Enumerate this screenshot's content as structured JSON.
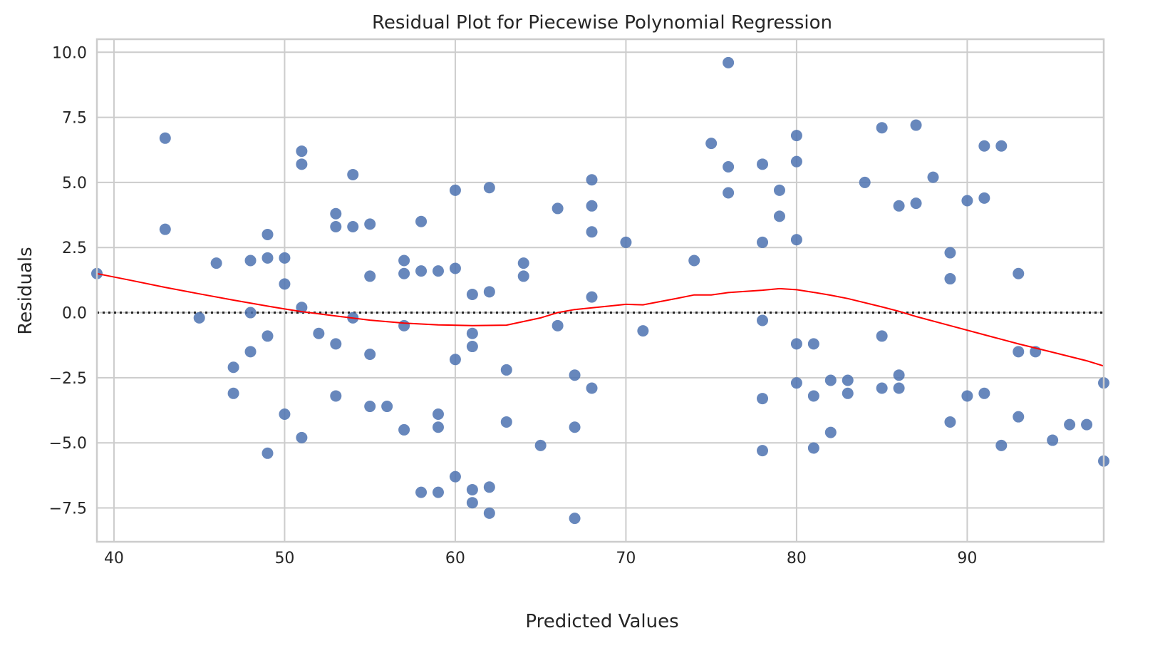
{
  "chart_data": {
    "type": "scatter",
    "title": "Residual Plot for Piecewise Polynomial Regression",
    "xlabel": "Predicted Values",
    "ylabel": "Residuals",
    "xlim": [
      39,
      98
    ],
    "ylim": [
      -8.8,
      10.5
    ],
    "grid": true,
    "x_ticks": [
      40,
      50,
      60,
      70,
      80,
      90
    ],
    "x_tick_labels": [
      "40",
      "50",
      "60",
      "70",
      "80",
      "90"
    ],
    "y_ticks": [
      10.0,
      7.5,
      5.0,
      2.5,
      0.0,
      -2.5,
      -5.0,
      -7.5
    ],
    "y_tick_labels": [
      "10.0",
      "7.5",
      "5.0",
      "2.5",
      "0.0",
      "−2.5",
      "−5.0",
      "−7.5"
    ],
    "reference_line": {
      "y": 0,
      "style": "dotted",
      "color": "#262626"
    },
    "colors": {
      "points": "#4c72b0",
      "trend": "#ff0000",
      "grid": "#cccccc",
      "spine": "#cccccc"
    },
    "series": [
      {
        "name": "Residuals",
        "kind": "scatter",
        "points": [
          [
            39,
            1.5
          ],
          [
            43,
            6.7
          ],
          [
            43,
            3.2
          ],
          [
            45,
            -0.2
          ],
          [
            46,
            1.9
          ],
          [
            47,
            -2.1
          ],
          [
            47,
            -3.1
          ],
          [
            48,
            2.0
          ],
          [
            48,
            0.0
          ],
          [
            48,
            -1.5
          ],
          [
            49,
            3.0
          ],
          [
            49,
            2.1
          ],
          [
            49,
            -0.9
          ],
          [
            49,
            -5.4
          ],
          [
            50,
            2.1
          ],
          [
            50,
            1.1
          ],
          [
            50,
            -3.9
          ],
          [
            51,
            6.2
          ],
          [
            51,
            5.7
          ],
          [
            51,
            0.2
          ],
          [
            51,
            -4.8
          ],
          [
            52,
            -0.8
          ],
          [
            53,
            3.8
          ],
          [
            53,
            3.3
          ],
          [
            53,
            -1.2
          ],
          [
            53,
            -3.2
          ],
          [
            54,
            5.3
          ],
          [
            54,
            3.3
          ],
          [
            54,
            -0.2
          ],
          [
            55,
            3.4
          ],
          [
            55,
            1.4
          ],
          [
            55,
            -1.6
          ],
          [
            55,
            -3.6
          ],
          [
            56,
            -3.6
          ],
          [
            57,
            2.0
          ],
          [
            57,
            1.5
          ],
          [
            57,
            -0.5
          ],
          [
            57,
            -4.5
          ],
          [
            58,
            3.5
          ],
          [
            58,
            1.6
          ],
          [
            58,
            -6.9
          ],
          [
            59,
            1.6
          ],
          [
            59,
            -3.9
          ],
          [
            59,
            -4.4
          ],
          [
            59,
            -6.9
          ],
          [
            60,
            4.7
          ],
          [
            60,
            1.7
          ],
          [
            60,
            -1.8
          ],
          [
            60,
            -6.3
          ],
          [
            61,
            0.7
          ],
          [
            61,
            -0.8
          ],
          [
            61,
            -1.3
          ],
          [
            61,
            -6.8
          ],
          [
            61,
            -7.3
          ],
          [
            62,
            4.8
          ],
          [
            62,
            0.8
          ],
          [
            62,
            -6.7
          ],
          [
            62,
            -7.7
          ],
          [
            63,
            -2.2
          ],
          [
            63,
            -4.2
          ],
          [
            64,
            1.9
          ],
          [
            64,
            1.4
          ],
          [
            65,
            -5.1
          ],
          [
            66,
            4.0
          ],
          [
            66,
            -0.5
          ],
          [
            67,
            -2.4
          ],
          [
            67,
            -4.4
          ],
          [
            67,
            -7.9
          ],
          [
            68,
            5.1
          ],
          [
            68,
            4.1
          ],
          [
            68,
            3.1
          ],
          [
            68,
            0.6
          ],
          [
            68,
            -2.9
          ],
          [
            70,
            2.7
          ],
          [
            71,
            -0.7
          ],
          [
            74,
            2.0
          ],
          [
            75,
            6.5
          ],
          [
            76,
            9.6
          ],
          [
            76,
            5.6
          ],
          [
            76,
            4.6
          ],
          [
            78,
            5.7
          ],
          [
            78,
            2.7
          ],
          [
            78,
            -0.3
          ],
          [
            78,
            -3.3
          ],
          [
            78,
            -5.3
          ],
          [
            79,
            4.7
          ],
          [
            79,
            3.7
          ],
          [
            80,
            6.8
          ],
          [
            80,
            5.8
          ],
          [
            80,
            2.8
          ],
          [
            80,
            -1.2
          ],
          [
            80,
            -2.7
          ],
          [
            81,
            -1.2
          ],
          [
            81,
            -3.2
          ],
          [
            81,
            -5.2
          ],
          [
            82,
            -2.6
          ],
          [
            82,
            -4.6
          ],
          [
            83,
            -2.6
          ],
          [
            83,
            -3.1
          ],
          [
            84,
            5.0
          ],
          [
            85,
            7.1
          ],
          [
            85,
            -0.9
          ],
          [
            85,
            -2.9
          ],
          [
            86,
            4.1
          ],
          [
            86,
            -2.4
          ],
          [
            86,
            -2.9
          ],
          [
            87,
            7.2
          ],
          [
            87,
            4.2
          ],
          [
            88,
            5.2
          ],
          [
            89,
            2.3
          ],
          [
            89,
            1.3
          ],
          [
            89,
            -4.2
          ],
          [
            90,
            4.3
          ],
          [
            90,
            -3.2
          ],
          [
            91,
            6.4
          ],
          [
            91,
            4.4
          ],
          [
            91,
            -3.1
          ],
          [
            92,
            6.4
          ],
          [
            92,
            -5.1
          ],
          [
            93,
            1.5
          ],
          [
            93,
            -1.5
          ],
          [
            93,
            -4.0
          ],
          [
            94,
            -1.5
          ],
          [
            95,
            -4.9
          ],
          [
            96,
            -4.3
          ],
          [
            97,
            -4.3
          ],
          [
            98,
            -2.7
          ],
          [
            98,
            -5.7
          ]
        ]
      },
      {
        "name": "Lowess trend",
        "kind": "line",
        "points": [
          [
            39,
            1.5
          ],
          [
            41,
            1.24
          ],
          [
            43,
            0.97
          ],
          [
            45,
            0.72
          ],
          [
            47,
            0.48
          ],
          [
            49,
            0.25
          ],
          [
            50,
            0.14
          ],
          [
            51,
            0.04
          ],
          [
            53,
            -0.13
          ],
          [
            55,
            -0.29
          ],
          [
            57,
            -0.4
          ],
          [
            59,
            -0.47
          ],
          [
            61,
            -0.5
          ],
          [
            63,
            -0.48
          ],
          [
            65,
            -0.2
          ],
          [
            66,
            0.0
          ],
          [
            67,
            0.12
          ],
          [
            69,
            0.25
          ],
          [
            70,
            0.32
          ],
          [
            71,
            0.3
          ],
          [
            73,
            0.55
          ],
          [
            74,
            0.68
          ],
          [
            75,
            0.68
          ],
          [
            76,
            0.77
          ],
          [
            78,
            0.86
          ],
          [
            79,
            0.92
          ],
          [
            80,
            0.88
          ],
          [
            81,
            0.78
          ],
          [
            82,
            0.67
          ],
          [
            83,
            0.54
          ],
          [
            85,
            0.22
          ],
          [
            86,
            0.05
          ],
          [
            87,
            -0.15
          ],
          [
            89,
            -0.5
          ],
          [
            91,
            -0.85
          ],
          [
            93,
            -1.2
          ],
          [
            95,
            -1.52
          ],
          [
            97,
            -1.85
          ],
          [
            98,
            -2.05
          ]
        ]
      }
    ]
  }
}
